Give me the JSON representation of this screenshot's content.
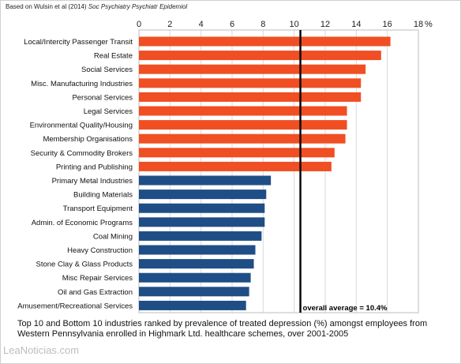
{
  "source": {
    "prefix": "Based on Wulsin et al (2014) ",
    "citation": "Soc Psychiatry Psychiatr Epidemiol"
  },
  "caption": "Top 10 and Bottom 10 industries ranked by prevalence of treated depression (%) amongst employees from Western Pennsylvania enrolled in Highmark Ltd. healthcare schemes, over 2001-2005",
  "watermark": "LeaNoticias.com",
  "chart_data": {
    "type": "bar",
    "orientation": "horizontal",
    "title": "",
    "xlabel": "",
    "ylabel": "",
    "axis_unit": "%",
    "xlim": [
      0,
      18
    ],
    "x_ticks": [
      0,
      2,
      4,
      6,
      8,
      10,
      12,
      14,
      16,
      18
    ],
    "grid": true,
    "categories": [
      "Local/Intercity Passenger Transit",
      "Real Estate",
      "Social Services",
      "Misc. Manufacturing Industries",
      "Personal Services",
      "Legal Services",
      "Environmental Quality/Housing",
      "Membership Organisations",
      "Security & Commodity Brokers",
      "Printing and Publishing",
      "Primary Metal Industries",
      "Building Materials",
      "Transport Equipment",
      "Admin. of Economic Programs",
      "Coal Mining",
      "Heavy Construction",
      "Stone Clay & Glass Products",
      "Misc Repair Services",
      "Oil and Gas Extraction",
      "Amusement/Recreational Services"
    ],
    "values": [
      16.2,
      15.6,
      14.6,
      14.3,
      14.3,
      13.4,
      13.4,
      13.3,
      12.6,
      12.4,
      8.5,
      8.2,
      8.1,
      8.1,
      7.9,
      7.5,
      7.4,
      7.2,
      7.1,
      6.9
    ],
    "groups": [
      "top",
      "top",
      "top",
      "top",
      "top",
      "top",
      "top",
      "top",
      "top",
      "top",
      "bottom",
      "bottom",
      "bottom",
      "bottom",
      "bottom",
      "bottom",
      "bottom",
      "bottom",
      "bottom",
      "bottom"
    ],
    "colors": {
      "top": "#f04e23",
      "bottom": "#1f4e87"
    },
    "reference_line": {
      "value": 10.4,
      "label": "overall average = 10.4%",
      "color": "#000000"
    }
  }
}
